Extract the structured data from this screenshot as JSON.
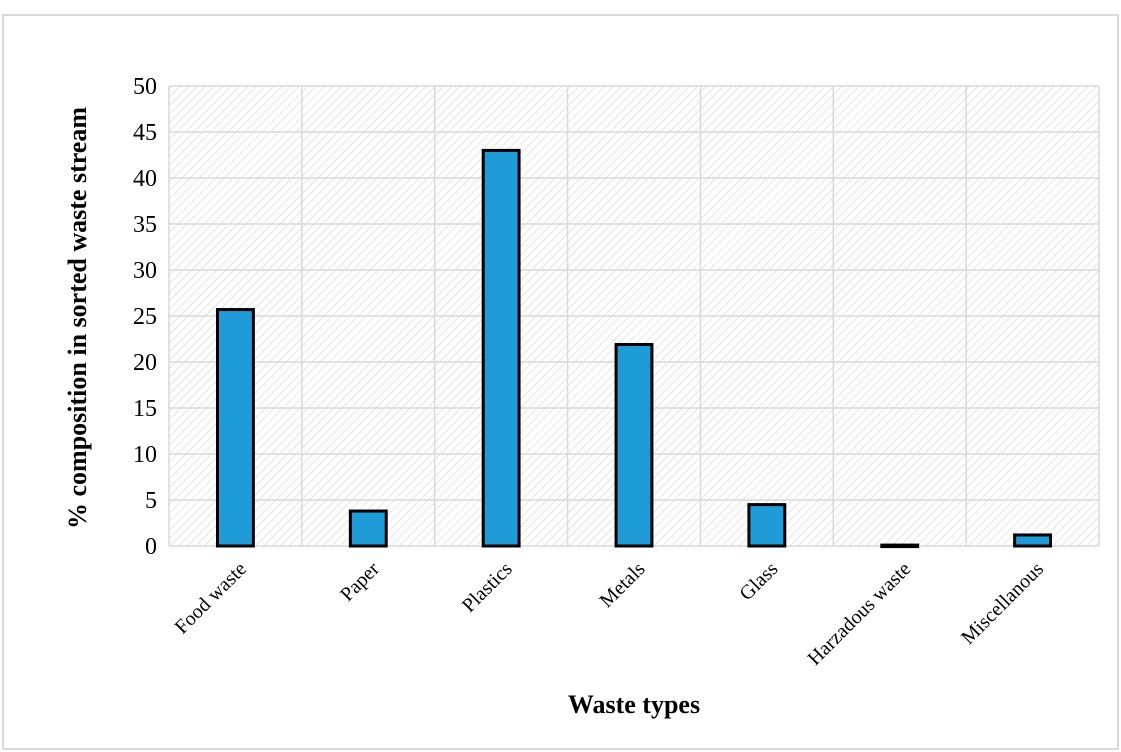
{
  "chart_data": {
    "type": "bar",
    "title": "",
    "xlabel": "Waste types",
    "ylabel": "% composition in sorted waste stream",
    "categories": [
      "Food waste",
      "Paper",
      "Plastics",
      "Metals",
      "Glass",
      "Harzadous waste",
      "Miscellanous"
    ],
    "values": [
      25.7,
      3.8,
      43.0,
      21.9,
      4.5,
      0.1,
      1.2
    ],
    "ylim": [
      0,
      50
    ],
    "yticks": [
      0,
      5,
      10,
      15,
      20,
      25,
      30,
      35,
      40,
      45,
      50
    ],
    "grid": true,
    "legend": "none",
    "colors": {
      "bar_fill": "#1f9bd7",
      "bar_stroke": "#000000",
      "gridline": "#d9d9d9",
      "hatch": "#d0d0d0"
    }
  }
}
